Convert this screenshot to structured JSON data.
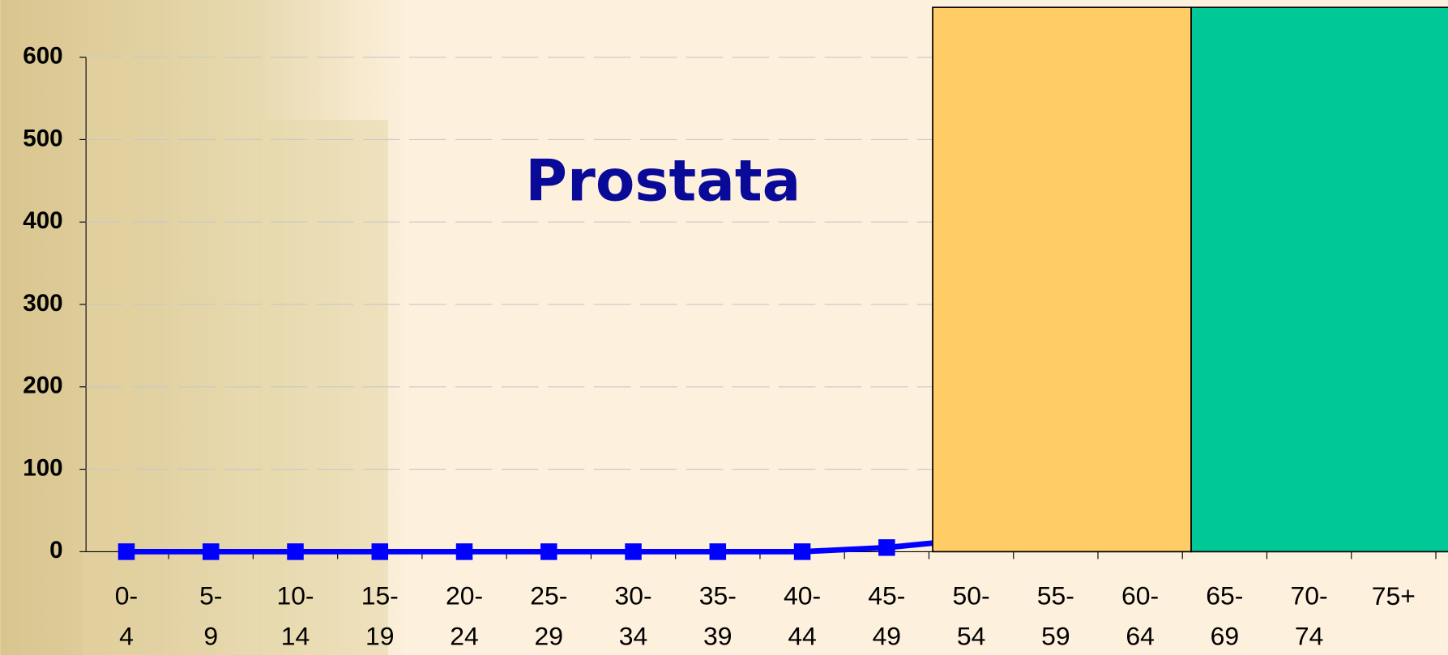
{
  "chart_data": {
    "type": "line",
    "title": "Prostata",
    "categories": [
      "0-4",
      "5-9",
      "10-14",
      "15-19",
      "20-24",
      "25-29",
      "30-34",
      "35-39",
      "40-44",
      "45-49",
      "50-54",
      "55-59",
      "60-64",
      "65-69",
      "70-74",
      "75+"
    ],
    "values": [
      0,
      0,
      0,
      0,
      0,
      0,
      0,
      0,
      0,
      5,
      15,
      null,
      null,
      null,
      null,
      null
    ],
    "color": "#0000ff",
    "ylim": [
      0,
      600
    ],
    "yticks": [
      0,
      100,
      200,
      300,
      400,
      500,
      600
    ],
    "grid": true
  }
}
